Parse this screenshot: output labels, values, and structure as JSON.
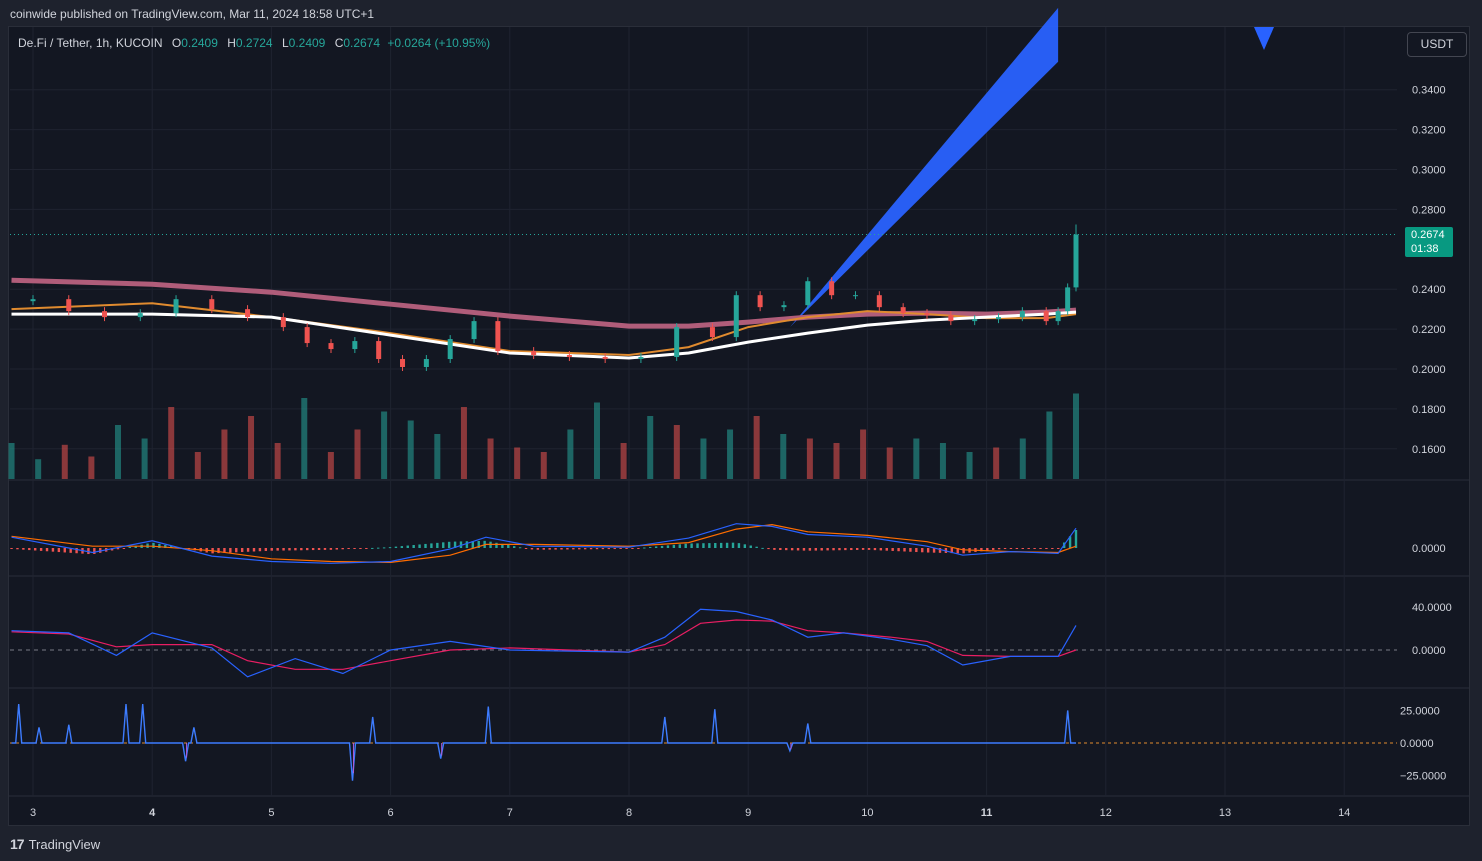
{
  "header": {
    "publisher": "coinwide published on TradingView.com, Mar 11, 2024 18:58 UTC+1"
  },
  "legend": {
    "symbol": "De.Fi / Tether, 1h, KUCOIN",
    "open_label": "O",
    "open": "0.2409",
    "high_label": "H",
    "high": "0.2724",
    "low_label": "L",
    "low": "0.2409",
    "close_label": "C",
    "close": "0.2674",
    "change": "+0.0264 (+10.95%)"
  },
  "currency_button": "USDT",
  "last_price": {
    "price": "0.2674",
    "countdown": "01:38"
  },
  "footer": {
    "logo": "17",
    "brand": "TradingView"
  },
  "colors": {
    "up": "#26a69a",
    "down": "#ef5350",
    "ema200": "#b05d7a",
    "ema_white": "#ffffff",
    "ema_orange": "#e08b2f",
    "projection": "#2962ff",
    "macd": "#2962ff",
    "signal": "#ff6d00"
  },
  "chart_data": [
    {
      "type": "candlestick",
      "title": "De.Fi / Tether, 1h, KUCOIN",
      "x_axis": {
        "ticks": [
          "3",
          "4",
          "5",
          "6",
          "7",
          "8",
          "9",
          "10",
          "11",
          "12",
          "13",
          "14"
        ],
        "bold_ticks": [
          "4",
          "11"
        ]
      },
      "y_axis": {
        "ticks": [
          "0.3400",
          "0.3200",
          "0.3000",
          "0.2800",
          "0.2400",
          "0.2200",
          "0.2000",
          "0.1800",
          "0.1600"
        ],
        "range": [
          0.145,
          0.352
        ]
      },
      "price_series": {
        "x": [
          2.82,
          3.0,
          3.3,
          3.6,
          3.9,
          4.2,
          4.5,
          4.8,
          5.1,
          5.3,
          5.5,
          5.7,
          5.9,
          6.1,
          6.3,
          6.5,
          6.7,
          6.9,
          7.2,
          7.5,
          7.8,
          8.1,
          8.4,
          8.7,
          8.9,
          9.1,
          9.3,
          9.5,
          9.7,
          9.9,
          10.1,
          10.3,
          10.5,
          10.7,
          10.9,
          11.1,
          11.3,
          11.5,
          11.6,
          11.68,
          11.75
        ],
        "close": [
          0.234,
          0.235,
          0.229,
          0.226,
          0.228,
          0.235,
          0.23,
          0.226,
          0.221,
          0.213,
          0.21,
          0.214,
          0.205,
          0.201,
          0.205,
          0.215,
          0.224,
          0.209,
          0.207,
          0.206,
          0.205,
          0.206,
          0.221,
          0.216,
          0.237,
          0.231,
          0.232,
          0.244,
          0.237,
          0.237,
          0.231,
          0.228,
          0.227,
          0.224,
          0.225,
          0.226,
          0.229,
          0.224,
          0.229,
          0.2409,
          0.2674
        ]
      },
      "ema_200": {
        "x": [
          2.82,
          4.0,
          5.0,
          6.0,
          7.0,
          8.0,
          8.5,
          9.0,
          9.5,
          10.0,
          10.5,
          11.0,
          11.5,
          11.75
        ],
        "values": [
          0.2445,
          0.2425,
          0.2385,
          0.2325,
          0.2265,
          0.2215,
          0.2215,
          0.2235,
          0.226,
          0.2275,
          0.228,
          0.2275,
          0.2285,
          0.2295
        ]
      },
      "ema_white": {
        "x": [
          2.82,
          4.0,
          5.0,
          6.0,
          7.0,
          8.0,
          8.5,
          9.0,
          9.5,
          10.0,
          10.5,
          11.0,
          11.5,
          11.75
        ],
        "values": [
          0.2275,
          0.2275,
          0.226,
          0.217,
          0.208,
          0.2055,
          0.208,
          0.2135,
          0.218,
          0.222,
          0.2245,
          0.226,
          0.2275,
          0.2285
        ]
      },
      "ema_orange": {
        "x": [
          2.82,
          4.0,
          5.0,
          6.0,
          7.0,
          8.0,
          8.5,
          9.0,
          9.5,
          10.0,
          10.5,
          11.0,
          11.5,
          11.75
        ],
        "values": [
          0.23,
          0.233,
          0.226,
          0.218,
          0.209,
          0.207,
          0.211,
          0.221,
          0.226,
          0.229,
          0.2275,
          0.2255,
          0.2255,
          0.2275
        ]
      },
      "projection": {
        "from": [
          9.35,
          0.221
        ],
        "to": [
          11.6,
          0.36
        ],
        "band": [
          0.006,
          0.021
        ]
      },
      "volume": [
        40,
        22,
        38,
        25,
        60,
        45,
        80,
        30,
        55,
        70,
        40,
        90,
        30,
        55,
        75,
        65,
        50,
        80,
        45,
        35,
        30,
        55,
        85,
        40,
        70,
        60,
        45,
        55,
        70,
        50,
        45,
        40,
        55,
        35,
        45,
        40,
        30,
        35,
        45,
        75,
        95
      ]
    },
    {
      "type": "macd",
      "y_axis": {
        "ticks": [
          "0.0000"
        ]
      },
      "x": [
        2.82,
        3.5,
        4.0,
        4.5,
        5.0,
        5.5,
        6.0,
        6.5,
        6.8,
        7.2,
        8.0,
        8.5,
        8.9,
        9.2,
        9.5,
        10.0,
        10.5,
        10.8,
        11.2,
        11.6,
        11.75
      ],
      "macd": [
        0.0012,
        -0.0005,
        0.0008,
        -0.0009,
        -0.0015,
        -0.0017,
        -0.0015,
        -0.0001,
        0.0012,
        0.0002,
        0.0001,
        0.0011,
        0.0027,
        0.0024,
        0.0015,
        0.0012,
        0.0002,
        -0.0008,
        -0.0004,
        -0.0006,
        0.0022
      ],
      "signal": [
        0.0013,
        0.0002,
        0.0002,
        -0.0003,
        -0.0012,
        -0.0015,
        -0.0016,
        -0.0008,
        0.0004,
        0.0004,
        0.0002,
        0.0006,
        0.0021,
        0.0026,
        0.0018,
        0.0014,
        0.0007,
        -0.0002,
        -0.0004,
        -0.0005,
        0.0002
      ]
    },
    {
      "type": "oscillator",
      "y_axis": {
        "ticks": [
          "40.0000",
          "0.0000"
        ]
      },
      "x": [
        2.82,
        3.3,
        3.7,
        4.0,
        4.5,
        4.8,
        5.2,
        5.6,
        6.0,
        6.5,
        7.0,
        7.5,
        8.0,
        8.3,
        8.6,
        8.9,
        9.2,
        9.5,
        9.8,
        10.2,
        10.5,
        10.8,
        11.2,
        11.6,
        11.75
      ],
      "line_1": [
        18,
        16,
        -5,
        16,
        2,
        -25,
        -8,
        -22,
        0,
        8,
        0,
        -1,
        -2,
        12,
        38,
        36,
        28,
        12,
        16,
        10,
        4,
        -14,
        -6,
        -6,
        23
      ],
      "line_2": [
        17,
        15,
        3,
        5,
        5,
        -10,
        -18,
        -18,
        -10,
        0,
        2,
        0,
        -2,
        5,
        25,
        28,
        27,
        18,
        16,
        12,
        8,
        -5,
        -6,
        -6,
        0
      ]
    },
    {
      "type": "line",
      "y_axis": {
        "ticks": [
          "25.0000",
          "0.0000",
          "−25.0000"
        ]
      },
      "spikes_up": [
        [
          2.88,
          30
        ],
        [
          3.05,
          12
        ],
        [
          3.3,
          14
        ],
        [
          3.78,
          30
        ],
        [
          3.92,
          30
        ],
        [
          4.35,
          12
        ],
        [
          5.85,
          20
        ],
        [
          6.82,
          28
        ],
        [
          8.3,
          20
        ],
        [
          8.72,
          26
        ],
        [
          9.5,
          15
        ],
        [
          11.68,
          25
        ]
      ],
      "spikes_down": [
        [
          4.28,
          -14
        ],
        [
          5.68,
          -29
        ],
        [
          6.42,
          -12
        ],
        [
          9.35,
          -6
        ]
      ]
    }
  ]
}
